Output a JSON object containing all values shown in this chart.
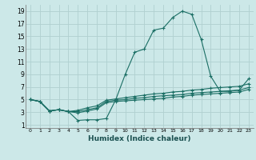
{
  "xlabel": "Humidex (Indice chaleur)",
  "bg_color": "#cce8e8",
  "grid_color": "#b0d0d0",
  "line_color": "#1a6e64",
  "xlim": [
    -0.5,
    23.5
  ],
  "ylim": [
    0.5,
    20
  ],
  "xticks": [
    0,
    1,
    2,
    3,
    4,
    5,
    6,
    7,
    8,
    9,
    10,
    11,
    12,
    13,
    14,
    15,
    16,
    17,
    18,
    19,
    20,
    21,
    22,
    23
  ],
  "yticks": [
    1,
    3,
    5,
    7,
    9,
    11,
    13,
    15,
    17,
    19
  ],
  "line1_x": [
    0,
    1,
    2,
    3,
    4,
    5,
    6,
    7,
    8,
    9,
    10,
    11,
    12,
    13,
    14,
    15,
    16,
    17,
    18,
    19,
    20,
    21,
    22,
    23
  ],
  "line1_y": [
    5.0,
    4.7,
    3.2,
    3.4,
    3.1,
    1.7,
    1.8,
    1.8,
    2.0,
    5.0,
    9.0,
    12.5,
    13.0,
    16.0,
    16.3,
    18.0,
    19.0,
    18.5,
    14.5,
    8.7,
    6.3,
    6.3,
    6.5,
    8.3
  ],
  "line2_x": [
    0,
    1,
    2,
    3,
    4,
    5,
    6,
    7,
    8,
    9,
    10,
    11,
    12,
    13,
    14,
    15,
    16,
    17,
    18,
    19,
    20,
    21,
    22,
    23
  ],
  "line2_y": [
    5.0,
    4.7,
    3.2,
    3.4,
    3.1,
    3.3,
    3.7,
    4.0,
    4.9,
    5.1,
    5.3,
    5.5,
    5.7,
    5.9,
    6.0,
    6.2,
    6.3,
    6.5,
    6.6,
    6.8,
    6.9,
    7.0,
    7.1,
    7.5
  ],
  "line3_x": [
    0,
    1,
    2,
    3,
    4,
    5,
    6,
    7,
    8,
    9,
    10,
    11,
    12,
    13,
    14,
    15,
    16,
    17,
    18,
    19,
    20,
    21,
    22,
    23
  ],
  "line3_y": [
    5.0,
    4.7,
    3.2,
    3.4,
    3.1,
    3.1,
    3.4,
    3.7,
    4.7,
    4.9,
    5.0,
    5.2,
    5.3,
    5.5,
    5.6,
    5.7,
    5.8,
    6.0,
    6.1,
    6.2,
    6.3,
    6.4,
    6.5,
    6.9
  ],
  "line4_x": [
    0,
    1,
    2,
    3,
    4,
    5,
    6,
    7,
    8,
    9,
    10,
    11,
    12,
    13,
    14,
    15,
    16,
    17,
    18,
    19,
    20,
    21,
    22,
    23
  ],
  "line4_y": [
    5.0,
    4.7,
    3.2,
    3.4,
    3.1,
    2.9,
    3.2,
    3.5,
    4.5,
    4.7,
    4.8,
    4.9,
    5.0,
    5.1,
    5.2,
    5.4,
    5.5,
    5.7,
    5.8,
    5.9,
    6.0,
    6.1,
    6.2,
    6.6
  ]
}
